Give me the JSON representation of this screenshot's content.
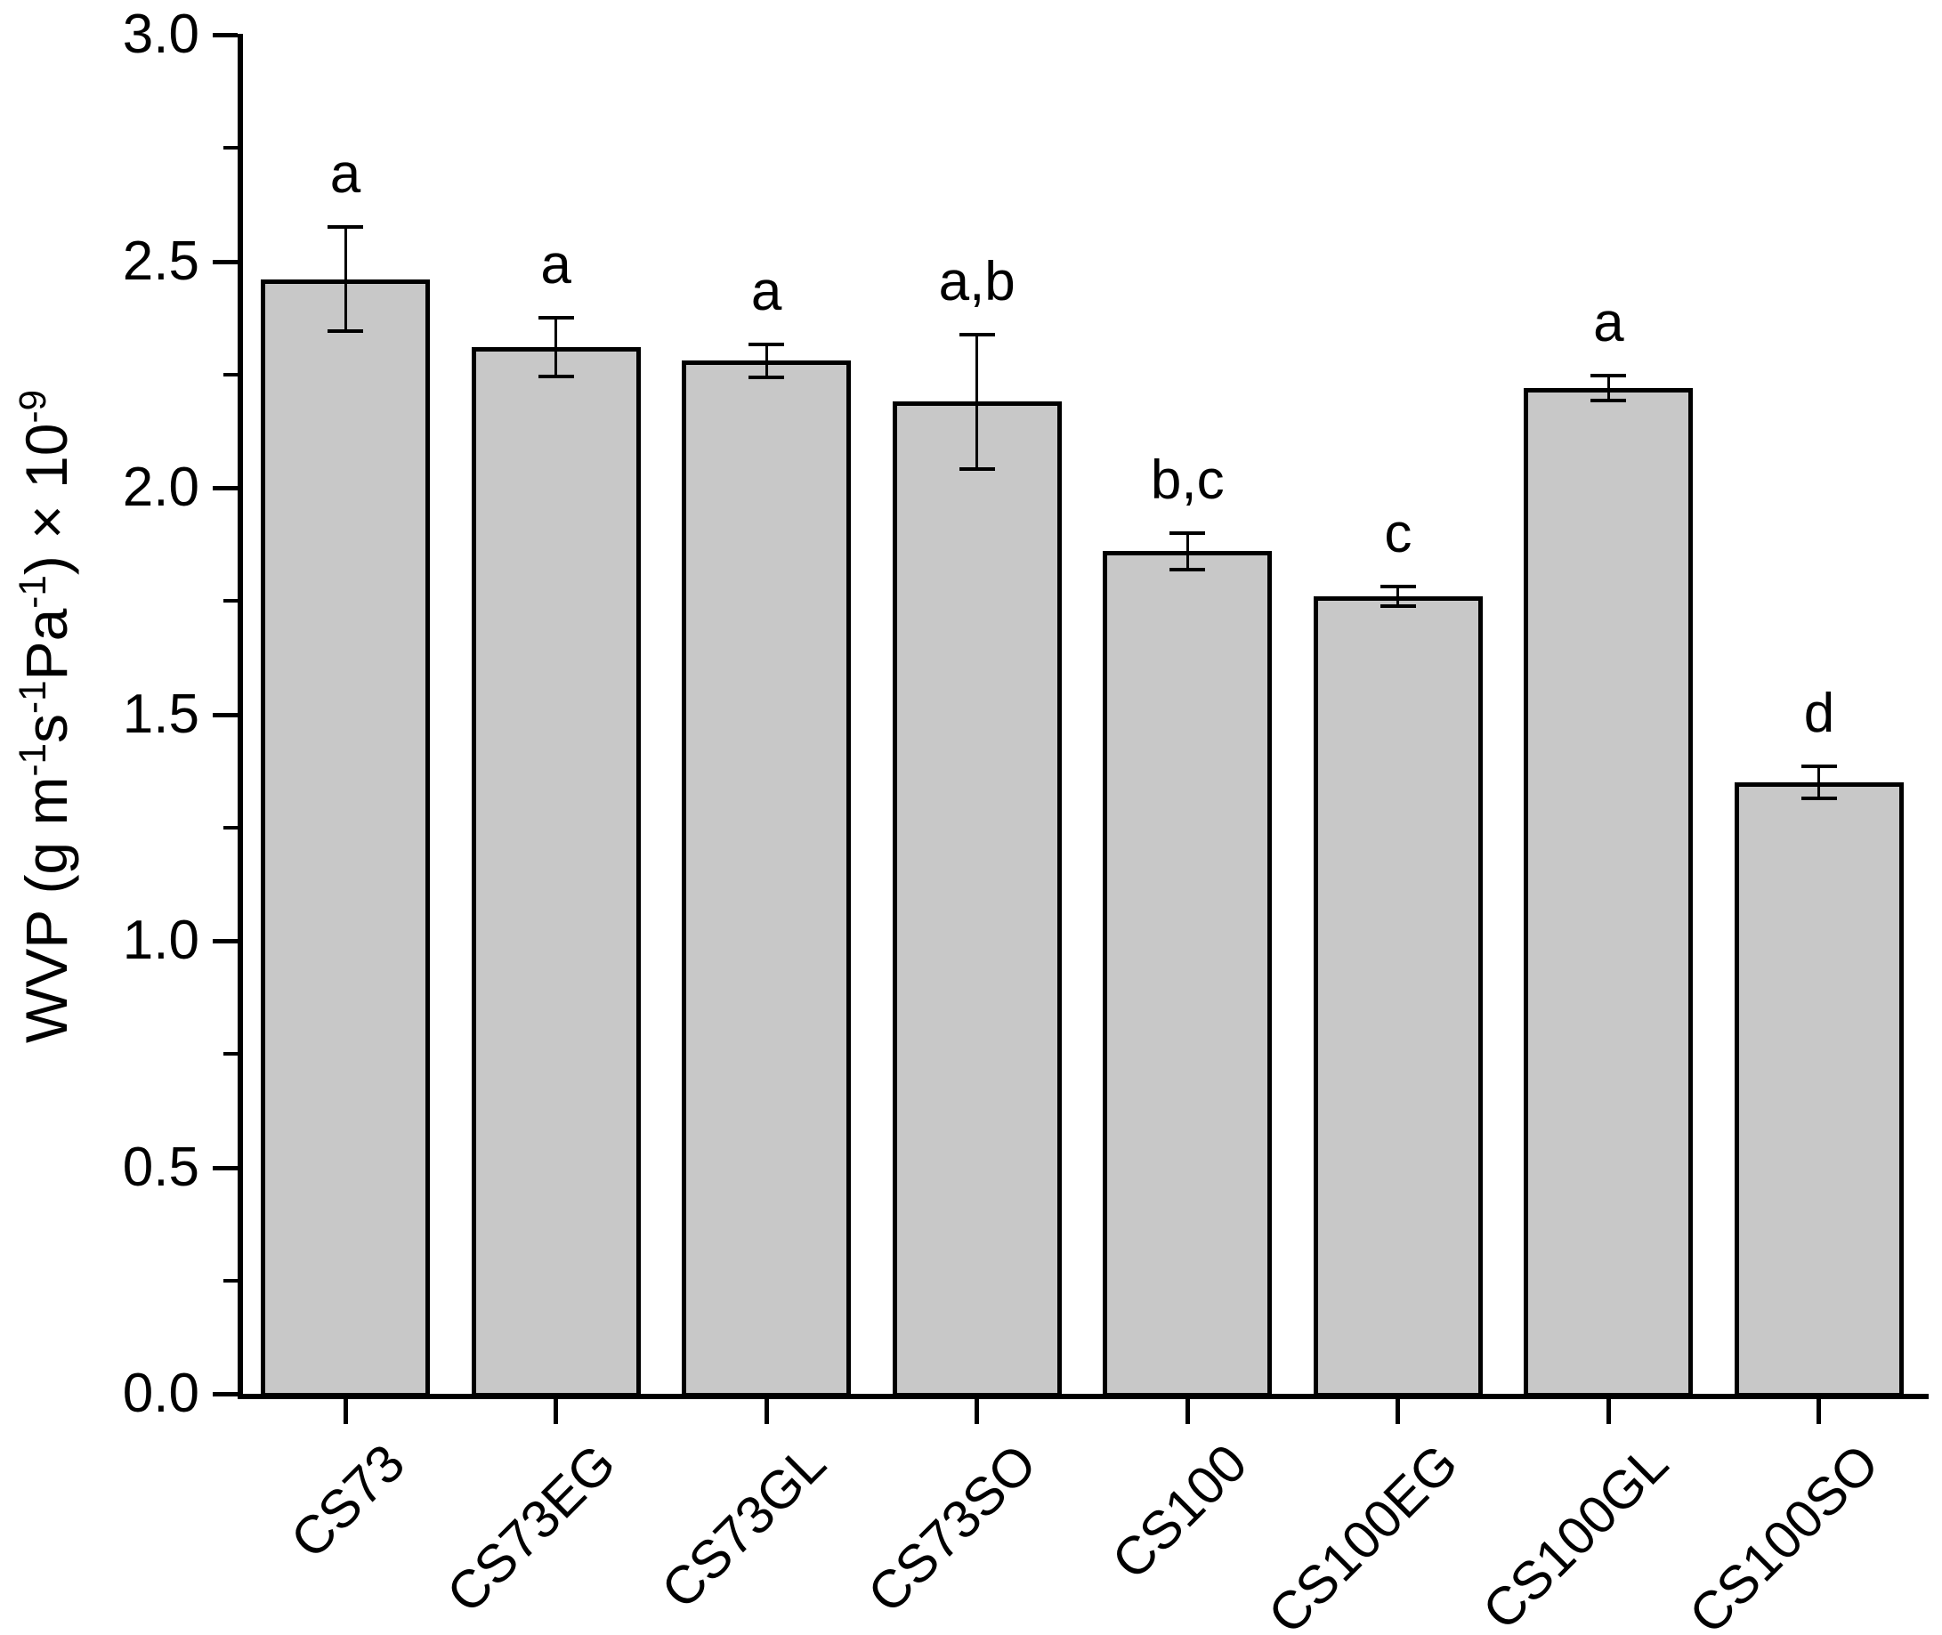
{
  "chart_data": {
    "type": "bar",
    "title": "",
    "xlabel": "",
    "ylabel": "WVP (g m⁻¹s⁻¹Pa⁻¹) × 10⁻⁹",
    "ylabel_parts": [
      {
        "text": "WVP (g m"
      },
      {
        "sup": "-1"
      },
      {
        "text": "s"
      },
      {
        "sup": "-1"
      },
      {
        "text": "Pa"
      },
      {
        "sup": "-1"
      },
      {
        "text": ") × 10"
      },
      {
        "sup": "-9"
      }
    ],
    "categories": [
      "CS73",
      "CS73EG",
      "CS73GL",
      "CS73SO",
      "CS100",
      "CS100EG",
      "CS100GL",
      "CS100SO"
    ],
    "series": [
      {
        "name": "WVP",
        "values": [
          2.46,
          2.31,
          2.28,
          2.19,
          1.86,
          1.76,
          2.22,
          1.35
        ],
        "errors": [
          0.115,
          0.065,
          0.036,
          0.148,
          0.04,
          0.021,
          0.028,
          0.036
        ]
      }
    ],
    "significance_letters": [
      "a",
      "a",
      "a",
      "a,b",
      "b,c",
      "c",
      "a",
      "d"
    ],
    "ylim": [
      0.0,
      3.0
    ],
    "y_major_ticks": [
      0.0,
      0.5,
      1.0,
      1.5,
      2.0,
      2.5,
      3.0
    ],
    "y_major_tick_labels": [
      "0.0",
      "0.5",
      "1.0",
      "1.5",
      "2.0",
      "2.5",
      "3.0"
    ],
    "y_minor_ticks": [
      0.25,
      0.75,
      1.25,
      1.75,
      2.25,
      2.75
    ],
    "grid": false,
    "legend": null,
    "bar_fill_color": "#c8c8c8",
    "bar_border_color": "#000000",
    "axis_color": "#000000",
    "background_color": "#ffffff"
  }
}
